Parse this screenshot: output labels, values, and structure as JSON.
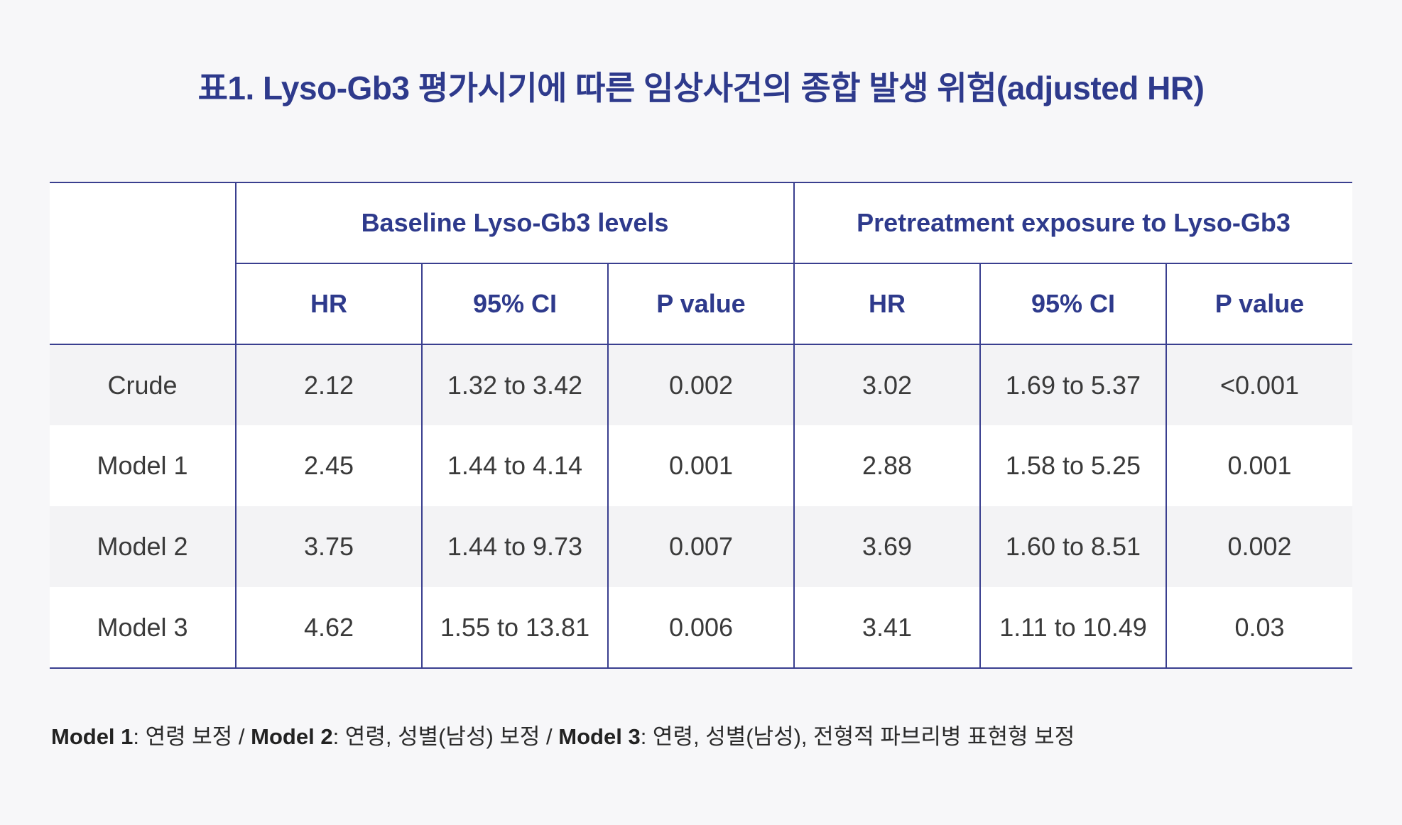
{
  "title": "표1. Lyso-Gb3 평가시기에 따른 임상사건의 종합 발생 위험(adjusted HR)",
  "table": {
    "group_headers": [
      "Baseline Lyso-Gb3 levels",
      "Pretreatment exposure to Lyso-Gb3"
    ],
    "sub_headers": [
      "HR",
      "95% CI",
      "P value",
      "HR",
      "95% CI",
      "P value"
    ],
    "rows": [
      {
        "label": "Crude",
        "cells": [
          "2.12",
          "1.32 to 3.42",
          "0.002",
          "3.02",
          "1.69 to 5.37",
          "<0.001"
        ]
      },
      {
        "label": "Model 1",
        "cells": [
          "2.45",
          "1.44 to 4.14",
          "0.001",
          "2.88",
          "1.58 to 5.25",
          "0.001"
        ]
      },
      {
        "label": "Model 2",
        "cells": [
          "3.75",
          "1.44 to 9.73",
          "0.007",
          "3.69",
          "1.60 to 8.51",
          "0.002"
        ]
      },
      {
        "label": "Model 3",
        "cells": [
          "4.62",
          "1.55 to 13.81",
          "0.006",
          "3.41",
          "1.11 to 10.49",
          "0.03"
        ]
      }
    ]
  },
  "footnote": {
    "m1_label": "Model 1",
    "m1_text": ": 연령 보정 / ",
    "m2_label": "Model 2",
    "m2_text": ": 연령, 성별(남성) 보정 / ",
    "m3_label": "Model 3",
    "m3_text": ": 연령, 성별(남성), 전형적 파브리병 표현형 보정"
  },
  "colors": {
    "accent": "#2e3a8c",
    "rule": "#3a3f8f",
    "background": "#f7f7f9"
  }
}
